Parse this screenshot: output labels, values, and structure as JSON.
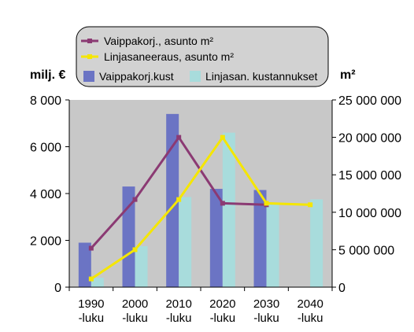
{
  "chart_data": {
    "type": "bar",
    "categories": [
      {
        "line1": "1990",
        "line2": "-luku"
      },
      {
        "line1": "2000",
        "line2": "-luku"
      },
      {
        "line1": "2010",
        "line2": "-luku"
      },
      {
        "line1": "2020",
        "line2": "-luku"
      },
      {
        "line1": "2030",
        "line2": "-luku"
      },
      {
        "line1": "2040",
        "line2": "-luku"
      }
    ],
    "ylabel_left": "milj. €",
    "ylabel_right": "m²",
    "ylim_left": [
      0,
      8000
    ],
    "ylim_right": [
      0,
      25000000
    ],
    "yticks_left": [
      "0",
      "2 000",
      "4 000",
      "6 000",
      "8 000"
    ],
    "yticks_right": [
      "0",
      "5 000 000",
      "10 000 000",
      "15 000 000",
      "20 000 000",
      "25 000 000"
    ],
    "yticks_left_values": [
      0,
      2000,
      4000,
      6000,
      8000
    ],
    "yticks_right_values": [
      0,
      5000000,
      10000000,
      15000000,
      20000000,
      25000000
    ],
    "bar_series": [
      {
        "name": "Vaippakorj.kust",
        "axis": "left",
        "color": "#6b74c4",
        "values": [
          1900,
          4300,
          7400,
          4200,
          4150,
          null
        ]
      },
      {
        "name": "Linjasan. kustannukset",
        "axis": "left",
        "color": "#a8dcdc",
        "values": [
          400,
          1750,
          3850,
          6600,
          3600,
          3750
        ]
      }
    ],
    "line_series": [
      {
        "name": "Vaippakorj., asunto m²",
        "axis": "right",
        "color": "#8b3a73",
        "values": [
          5200000,
          11700000,
          20000000,
          11200000,
          11000000,
          null
        ]
      },
      {
        "name": "Linjasaneeraus, asunto m²",
        "axis": "right",
        "color": "#f5e600",
        "values": [
          1100000,
          5000000,
          11700000,
          20000000,
          11200000,
          11000000
        ]
      }
    ],
    "grid": false,
    "legend": "top",
    "plot_background": "#c8c8c8"
  }
}
